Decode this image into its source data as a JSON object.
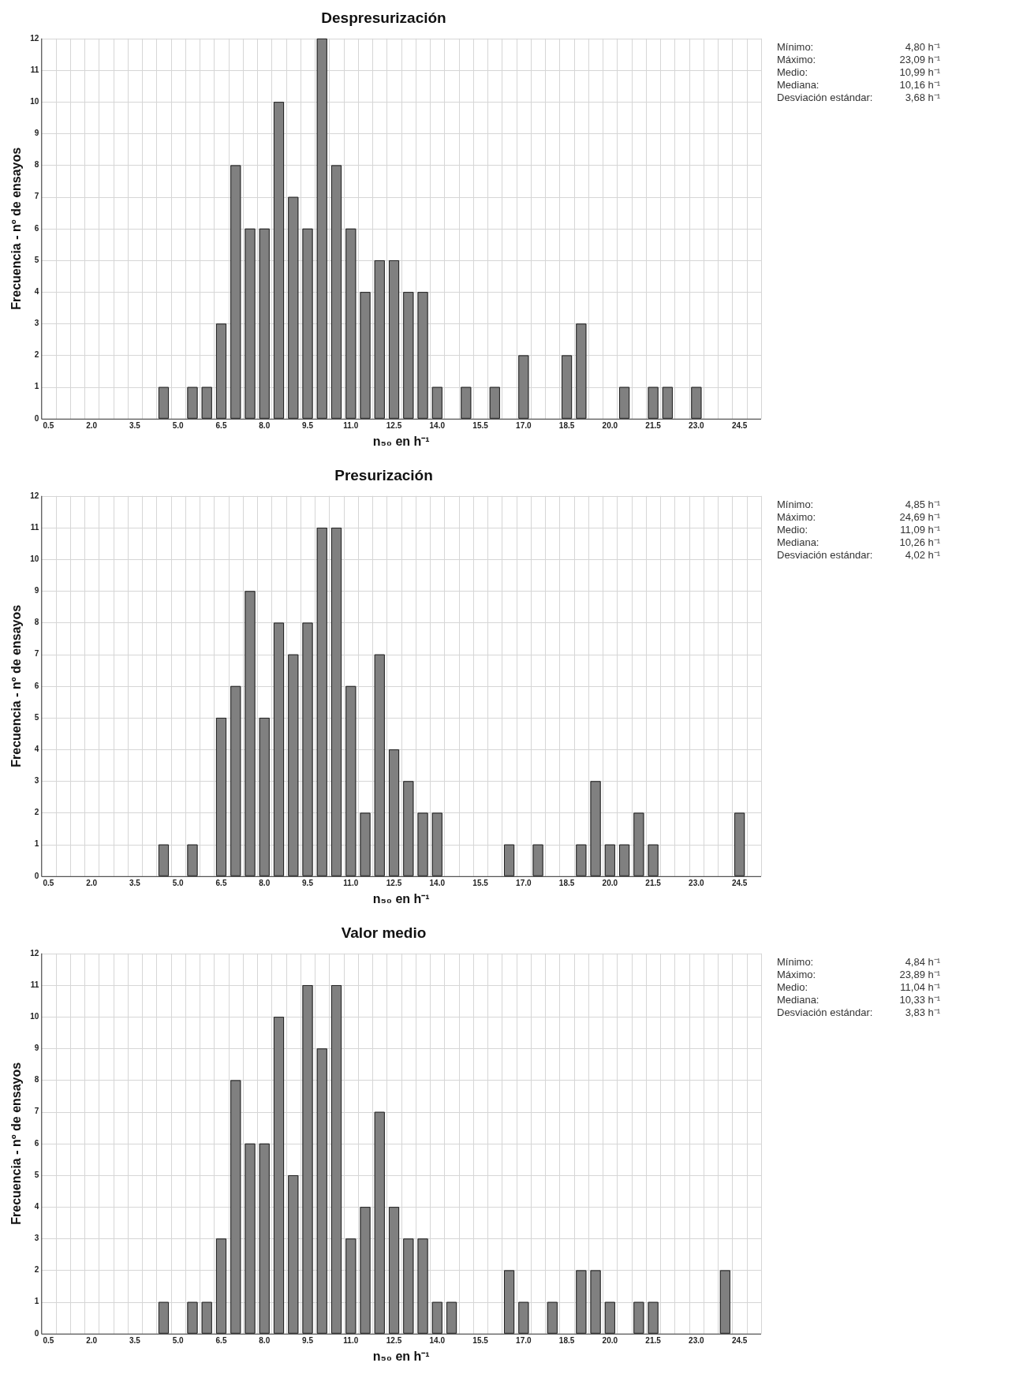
{
  "chart_data": [
    {
      "type": "histogram",
      "title": "Despresurización",
      "xlabel": "n₅₀ en h⁻¹",
      "ylabel": "Frecuencia - nº de ensayos",
      "color": "#808080",
      "bins": [
        0.25,
        0.75,
        1.25,
        1.75,
        2.25,
        2.75,
        3.25,
        3.75,
        4.25,
        4.75,
        5.25,
        5.75,
        6.25,
        6.75,
        7.25,
        7.75,
        8.25,
        8.75,
        9.25,
        9.75,
        10.25,
        10.75,
        11.25,
        11.75,
        12.25,
        12.75,
        13.25,
        13.75,
        14.25,
        14.75,
        15.25,
        15.75,
        16.25,
        16.75,
        17.25,
        17.75,
        18.25,
        18.75,
        19.25,
        19.75,
        20.25,
        20.75,
        21.25,
        21.75,
        22.25,
        22.75,
        23.25,
        23.75,
        24.25,
        24.75,
        25.25
      ],
      "values": [
        0,
        0,
        0,
        0,
        0,
        0,
        0,
        0,
        1,
        0,
        1,
        1,
        3,
        8,
        6,
        6,
        10,
        7,
        6,
        12,
        8,
        6,
        4,
        5,
        5,
        4,
        4,
        1,
        0,
        1,
        0,
        1,
        0,
        2,
        0,
        0,
        2,
        3,
        0,
        0,
        1,
        0,
        1,
        1,
        0,
        1,
        0,
        0,
        0,
        0
      ],
      "xlim": [
        0.25,
        25.25
      ],
      "xticks": [
        0.5,
        {
          "value": 2,
          "label": "2.0"
        },
        3.5,
        {
          "value": 5,
          "label": "5.0"
        },
        6.5,
        {
          "value": 8,
          "label": "8.0"
        },
        9.5,
        {
          "value": 11,
          "label": "11.0"
        },
        12.5,
        {
          "value": 14,
          "label": "14.0"
        },
        15.5,
        {
          "value": 17,
          "label": "17.0"
        },
        18.5,
        {
          "value": 20,
          "label": "20.0"
        },
        21.5,
        {
          "value": 23,
          "label": "23.0"
        },
        24.5
      ],
      "ylim": [
        0,
        12
      ],
      "yticks": [
        0,
        1,
        2,
        3,
        4,
        5,
        6,
        7,
        8,
        9,
        10,
        11,
        12
      ],
      "grid": true,
      "legend": false,
      "annotations": [
        "Mínimo:",
        "4,80 h⁻¹",
        "Máximo:",
        "23,09 h⁻¹",
        "Medio:",
        "10,99 h⁻¹",
        "Mediana:",
        "10,16 h⁻¹",
        "Desviación estándar:",
        "3,68 h⁻¹"
      ]
    },
    {
      "type": "histogram",
      "title": "Presurización",
      "xlabel": "n₅₀ en h⁻¹",
      "ylabel": "Frecuencia - nº de ensayos",
      "color": "#808080",
      "bins": [
        0.25,
        0.75,
        1.25,
        1.75,
        2.25,
        2.75,
        3.25,
        3.75,
        4.25,
        4.75,
        5.25,
        5.75,
        6.25,
        6.75,
        7.25,
        7.75,
        8.25,
        8.75,
        9.25,
        9.75,
        10.25,
        10.75,
        11.25,
        11.75,
        12.25,
        12.75,
        13.25,
        13.75,
        14.25,
        14.75,
        15.25,
        15.75,
        16.25,
        16.75,
        17.25,
        17.75,
        18.25,
        18.75,
        19.25,
        19.75,
        20.25,
        20.75,
        21.25,
        21.75,
        22.25,
        22.75,
        23.25,
        23.75,
        24.25,
        24.75,
        25.25
      ],
      "values": [
        0,
        0,
        0,
        0,
        0,
        0,
        0,
        0,
        1,
        0,
        1,
        0,
        5,
        6,
        9,
        5,
        8,
        7,
        8,
        11,
        11,
        6,
        2,
        7,
        4,
        3,
        2,
        2,
        0,
        0,
        0,
        0,
        1,
        0,
        1,
        0,
        0,
        1,
        3,
        1,
        1,
        2,
        1,
        0,
        0,
        0,
        0,
        0,
        2,
        0
      ],
      "xlim": [
        0.25,
        25.25
      ],
      "xticks": [
        0.5,
        {
          "value": 2,
          "label": "2.0"
        },
        3.5,
        {
          "value": 5,
          "label": "5.0"
        },
        6.5,
        {
          "value": 8,
          "label": "8.0"
        },
        9.5,
        {
          "value": 11,
          "label": "11.0"
        },
        12.5,
        {
          "value": 14,
          "label": "14.0"
        },
        15.5,
        {
          "value": 17,
          "label": "17.0"
        },
        18.5,
        {
          "value": 20,
          "label": "20.0"
        },
        21.5,
        {
          "value": 23,
          "label": "23.0"
        },
        24.5
      ],
      "ylim": [
        0,
        12
      ],
      "yticks": [
        0,
        1,
        2,
        3,
        4,
        5,
        6,
        7,
        8,
        9,
        10,
        11,
        12
      ],
      "grid": true,
      "legend": false,
      "annotations": [
        "Mínimo:",
        "4,85 h⁻¹",
        "Máximo:",
        "24,69 h⁻¹",
        "Medio:",
        "11,09 h⁻¹",
        "Mediana:",
        "10,26 h⁻¹",
        "Desviación estándar:",
        "4,02 h⁻¹"
      ]
    },
    {
      "type": "histogram",
      "title": "Valor medio",
      "xlabel": "n₅₀ en h⁻¹",
      "ylabel": "Frecuencia - nº de ensayos",
      "color": "#808080",
      "bins": [
        0.25,
        0.75,
        1.25,
        1.75,
        2.25,
        2.75,
        3.25,
        3.75,
        4.25,
        4.75,
        5.25,
        5.75,
        6.25,
        6.75,
        7.25,
        7.75,
        8.25,
        8.75,
        9.25,
        9.75,
        10.25,
        10.75,
        11.25,
        11.75,
        12.25,
        12.75,
        13.25,
        13.75,
        14.25,
        14.75,
        15.25,
        15.75,
        16.25,
        16.75,
        17.25,
        17.75,
        18.25,
        18.75,
        19.25,
        19.75,
        20.25,
        20.75,
        21.25,
        21.75,
        22.25,
        22.75,
        23.25,
        23.75,
        24.25,
        24.75,
        25.25
      ],
      "values": [
        0,
        0,
        0,
        0,
        0,
        0,
        0,
        0,
        1,
        0,
        1,
        1,
        3,
        8,
        6,
        6,
        10,
        5,
        11,
        9,
        11,
        3,
        4,
        7,
        4,
        3,
        3,
        1,
        1,
        0,
        0,
        0,
        2,
        1,
        0,
        1,
        0,
        2,
        2,
        1,
        0,
        1,
        1,
        0,
        0,
        0,
        0,
        2,
        0,
        0
      ],
      "xlim": [
        0.25,
        25.25
      ],
      "xticks": [
        0.5,
        {
          "value": 2,
          "label": "2.0"
        },
        3.5,
        {
          "value": 5,
          "label": "5.0"
        },
        6.5,
        {
          "value": 8,
          "label": "8.0"
        },
        9.5,
        {
          "value": 11,
          "label": "11.0"
        },
        12.5,
        {
          "value": 14,
          "label": "14.0"
        },
        15.5,
        {
          "value": 17,
          "label": "17.0"
        },
        18.5,
        {
          "value": 20,
          "label": "20.0"
        },
        21.5,
        {
          "value": 23,
          "label": "23.0"
        },
        24.5
      ],
      "ylim": [
        0,
        12
      ],
      "yticks": [
        0,
        1,
        2,
        3,
        4,
        5,
        6,
        7,
        8,
        9,
        10,
        11,
        12
      ],
      "grid": true,
      "legend": false,
      "annotations": [
        "Mínimo:",
        "4,84 h⁻¹",
        "Máximo:",
        "23,89 h⁻¹",
        "Medio:",
        "11,04 h⁻¹",
        "Mediana:",
        "10,33 h⁻¹",
        "Desviación estándar:",
        "3,83 h⁻¹"
      ]
    }
  ]
}
